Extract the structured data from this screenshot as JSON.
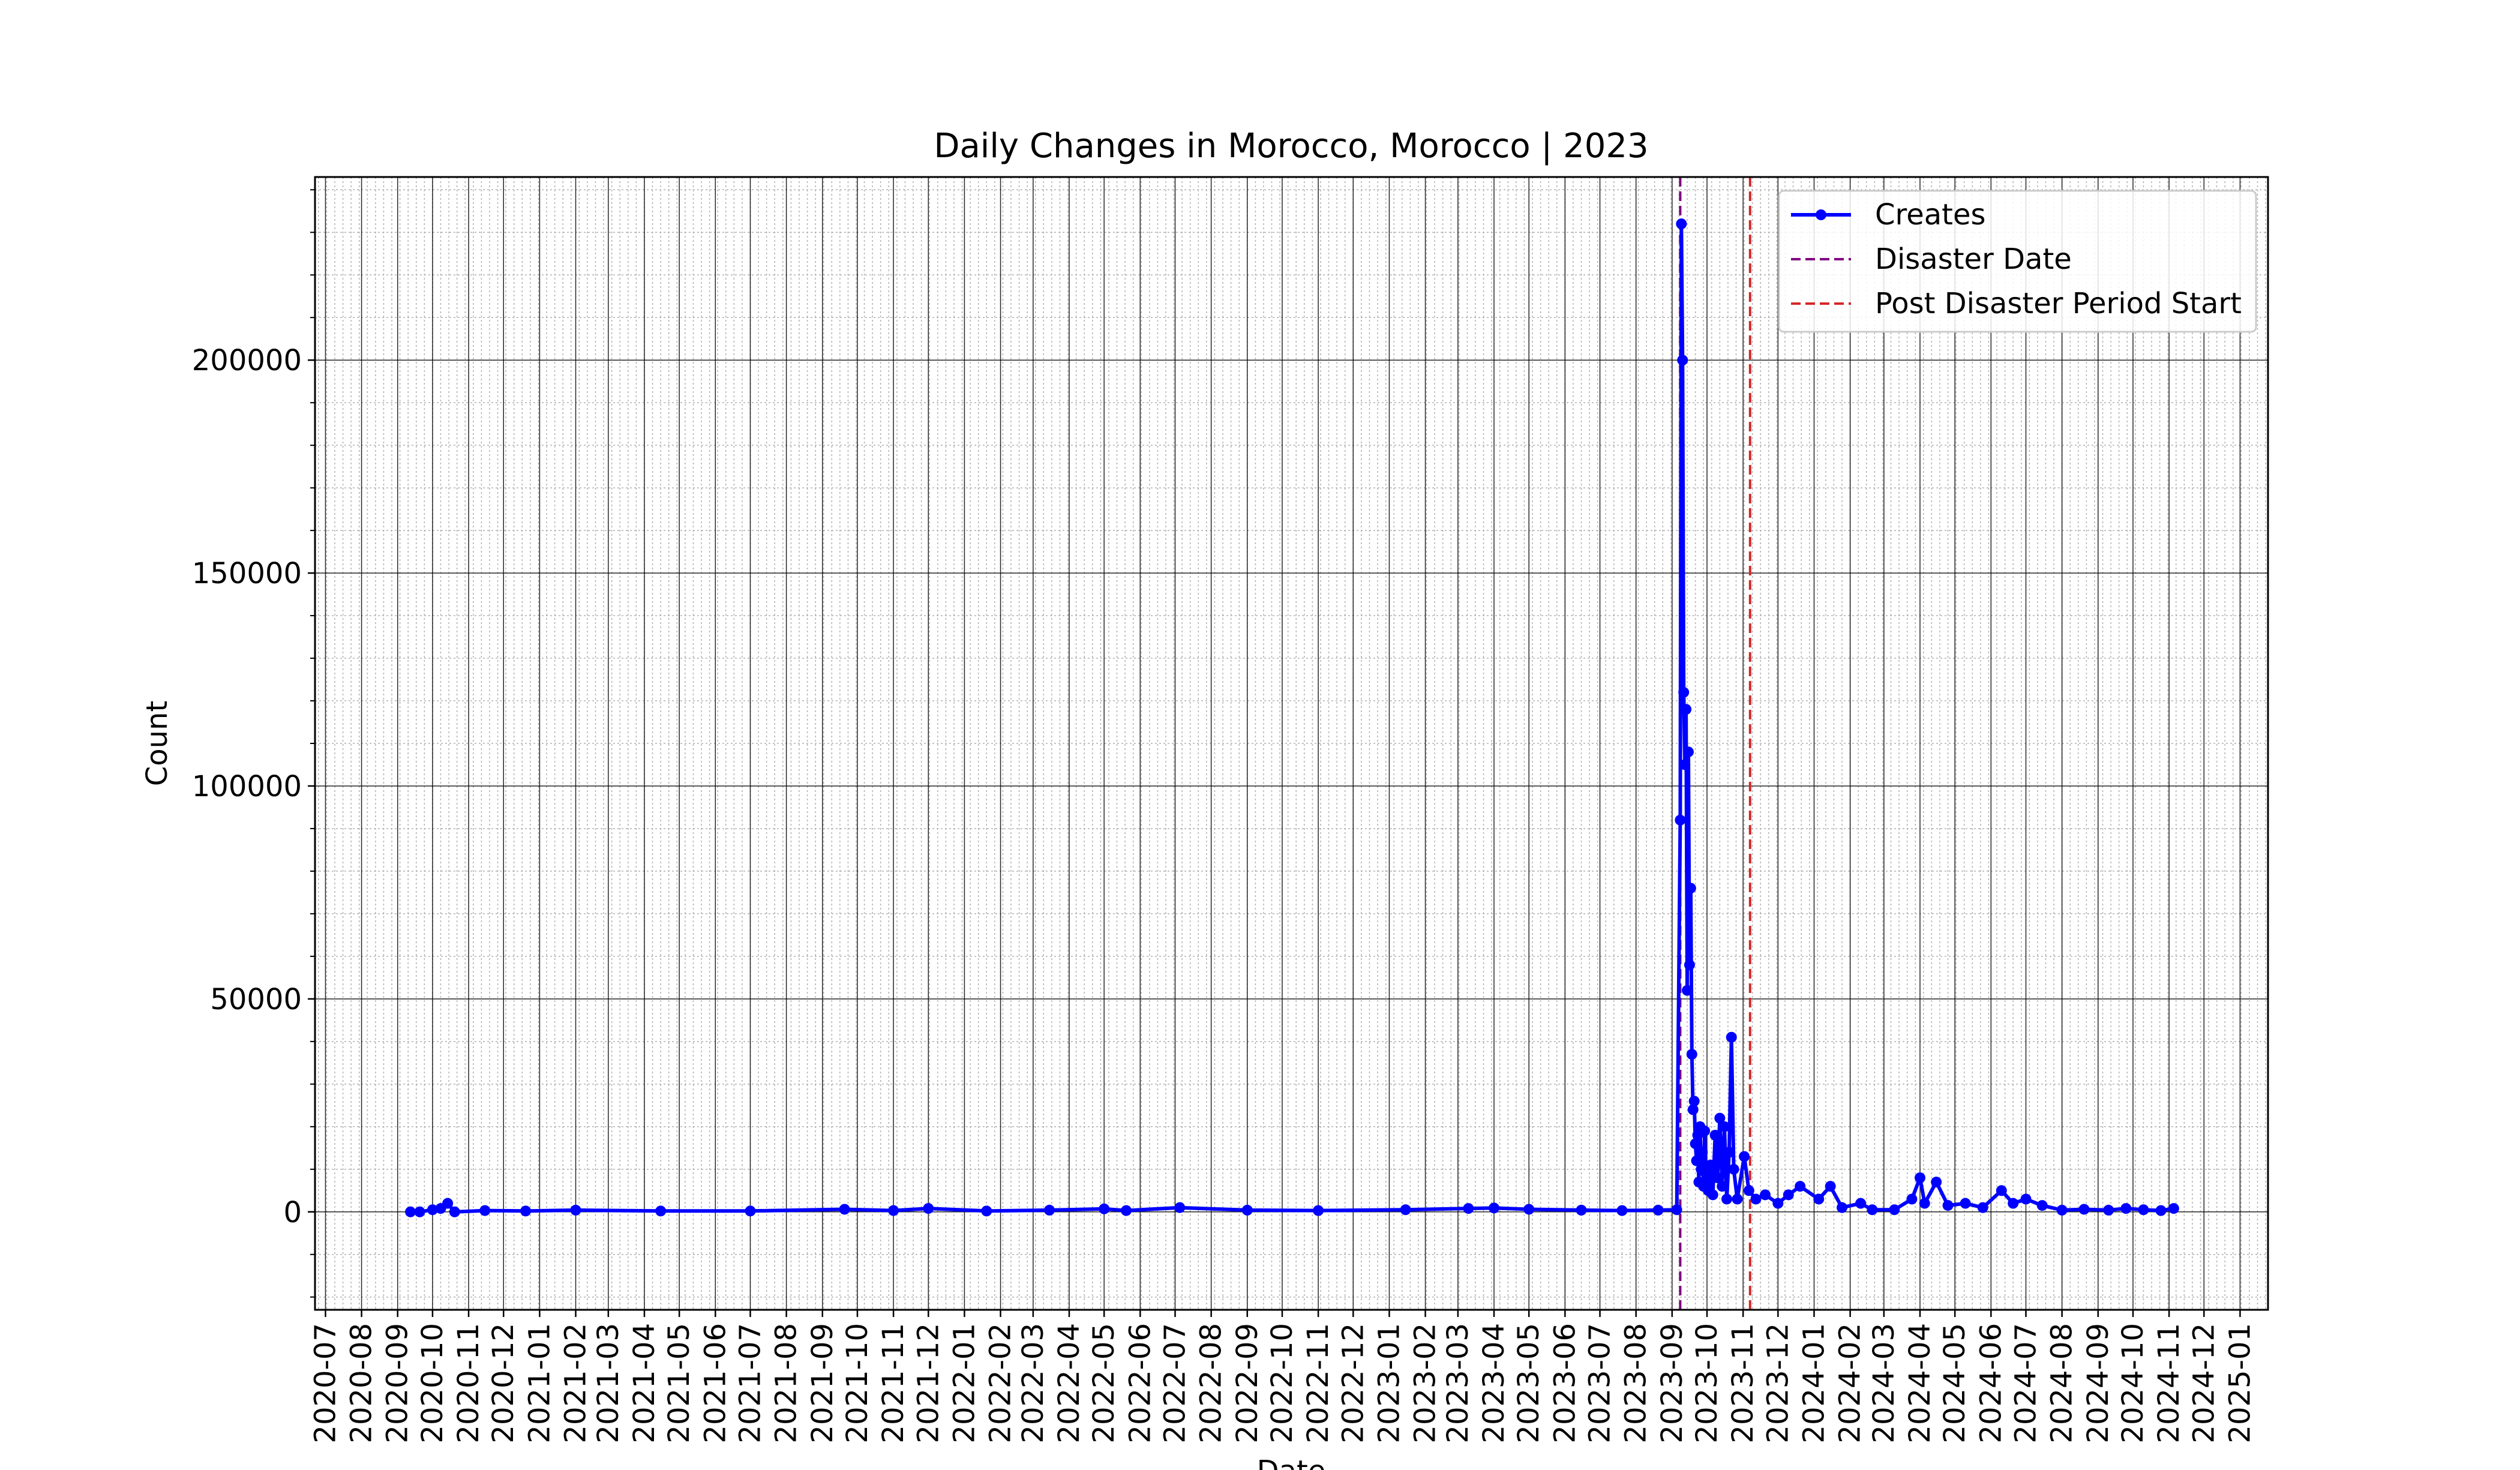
{
  "chart_data": {
    "type": "line",
    "title": "Daily Changes in Morocco, Morocco | 2023",
    "xlabel": "Date",
    "ylabel": "Count",
    "ylim": [
      -23000,
      243000
    ],
    "x_range": [
      "2020-06-22",
      "2025-01-25"
    ],
    "yticks": [
      0,
      50000,
      100000,
      150000,
      200000
    ],
    "xtick_labels": [
      "2020-07",
      "2020-08",
      "2020-09",
      "2020-10",
      "2020-11",
      "2020-12",
      "2021-01",
      "2021-02",
      "2021-03",
      "2021-04",
      "2021-05",
      "2021-06",
      "2021-07",
      "2021-08",
      "2021-09",
      "2021-10",
      "2021-11",
      "2021-12",
      "2022-01",
      "2022-02",
      "2022-03",
      "2022-04",
      "2022-05",
      "2022-06",
      "2022-07",
      "2022-08",
      "2022-09",
      "2022-10",
      "2022-11",
      "2022-12",
      "2023-01",
      "2023-02",
      "2023-03",
      "2023-04",
      "2023-05",
      "2023-06",
      "2023-07",
      "2023-08",
      "2023-09",
      "2023-10",
      "2023-11",
      "2023-12",
      "2024-01",
      "2024-02",
      "2024-03",
      "2024-04",
      "2024-05",
      "2024-06",
      "2024-07",
      "2024-08",
      "2024-09",
      "2024-10",
      "2024-11",
      "2024-12",
      "2025-01"
    ],
    "grid": true,
    "legend_position": "top-right",
    "series": [
      {
        "name": "Creates",
        "color": "#0000ff",
        "style": "line-with-dots",
        "points": [
          [
            "2020-09-12",
            0
          ],
          [
            "2020-09-20",
            0
          ],
          [
            "2020-10-01",
            500
          ],
          [
            "2020-10-08",
            800
          ],
          [
            "2020-10-14",
            2000
          ],
          [
            "2020-10-20",
            0
          ],
          [
            "2020-11-15",
            300
          ],
          [
            "2020-12-20",
            200
          ],
          [
            "2021-02-01",
            400
          ],
          [
            "2021-04-15",
            200
          ],
          [
            "2021-07-01",
            200
          ],
          [
            "2021-09-20",
            600
          ],
          [
            "2021-11-01",
            300
          ],
          [
            "2021-12-01",
            800
          ],
          [
            "2022-01-20",
            200
          ],
          [
            "2022-03-15",
            400
          ],
          [
            "2022-05-01",
            700
          ],
          [
            "2022-05-20",
            300
          ],
          [
            "2022-07-05",
            1000
          ],
          [
            "2022-09-01",
            400
          ],
          [
            "2022-11-01",
            300
          ],
          [
            "2023-01-15",
            500
          ],
          [
            "2023-03-10",
            800
          ],
          [
            "2023-04-01",
            900
          ],
          [
            "2023-05-01",
            600
          ],
          [
            "2023-06-15",
            400
          ],
          [
            "2023-07-20",
            300
          ],
          [
            "2023-08-20",
            400
          ],
          [
            "2023-09-05",
            500
          ],
          [
            "2023-09-08",
            92000
          ],
          [
            "2023-09-09",
            232000
          ],
          [
            "2023-09-10",
            200000
          ],
          [
            "2023-09-11",
            122000
          ],
          [
            "2023-09-12",
            105000
          ],
          [
            "2023-09-13",
            118000
          ],
          [
            "2023-09-14",
            52000
          ],
          [
            "2023-09-15",
            108000
          ],
          [
            "2023-09-16",
            58000
          ],
          [
            "2023-09-17",
            76000
          ],
          [
            "2023-09-18",
            37000
          ],
          [
            "2023-09-19",
            24000
          ],
          [
            "2023-09-20",
            26000
          ],
          [
            "2023-09-21",
            16000
          ],
          [
            "2023-09-22",
            12000
          ],
          [
            "2023-09-23",
            18000
          ],
          [
            "2023-09-24",
            7000
          ],
          [
            "2023-09-25",
            20000
          ],
          [
            "2023-09-26",
            10000
          ],
          [
            "2023-09-27",
            14000
          ],
          [
            "2023-09-28",
            6000
          ],
          [
            "2023-09-29",
            19000
          ],
          [
            "2023-09-30",
            9000
          ],
          [
            "2023-10-02",
            5000
          ],
          [
            "2023-10-04",
            11000
          ],
          [
            "2023-10-06",
            4000
          ],
          [
            "2023-10-08",
            18000
          ],
          [
            "2023-10-10",
            8000
          ],
          [
            "2023-10-12",
            22000
          ],
          [
            "2023-10-14",
            6000
          ],
          [
            "2023-10-16",
            20000
          ],
          [
            "2023-10-18",
            3000
          ],
          [
            "2023-10-20",
            14000
          ],
          [
            "2023-10-22",
            41000
          ],
          [
            "2023-10-24",
            10000
          ],
          [
            "2023-10-27",
            3000
          ],
          [
            "2023-11-02",
            13000
          ],
          [
            "2023-11-06",
            5000
          ],
          [
            "2023-11-12",
            3000
          ],
          [
            "2023-11-20",
            4000
          ],
          [
            "2023-12-01",
            2000
          ],
          [
            "2023-12-10",
            4000
          ],
          [
            "2023-12-20",
            6000
          ],
          [
            "2024-01-05",
            3000
          ],
          [
            "2024-01-15",
            6000
          ],
          [
            "2024-01-25",
            1000
          ],
          [
            "2024-02-10",
            2000
          ],
          [
            "2024-02-20",
            500
          ],
          [
            "2024-03-10",
            500
          ],
          [
            "2024-03-25",
            3000
          ],
          [
            "2024-04-01",
            8000
          ],
          [
            "2024-04-05",
            2000
          ],
          [
            "2024-04-15",
            7000
          ],
          [
            "2024-04-25",
            1500
          ],
          [
            "2024-05-10",
            2000
          ],
          [
            "2024-05-25",
            1000
          ],
          [
            "2024-06-10",
            5000
          ],
          [
            "2024-06-20",
            2000
          ],
          [
            "2024-07-01",
            3000
          ],
          [
            "2024-07-15",
            1500
          ],
          [
            "2024-08-01",
            400
          ],
          [
            "2024-08-20",
            600
          ],
          [
            "2024-09-10",
            400
          ],
          [
            "2024-09-25",
            800
          ],
          [
            "2024-10-10",
            500
          ],
          [
            "2024-10-25",
            300
          ],
          [
            "2024-11-05",
            800
          ]
        ]
      },
      {
        "name": "Disaster Date",
        "color": "#800080",
        "style": "vline-dashed",
        "x": "2023-09-08"
      },
      {
        "name": "Post Disaster Period Start",
        "color": "#d62728",
        "style": "vline-dashed",
        "x": "2023-11-07"
      }
    ]
  }
}
